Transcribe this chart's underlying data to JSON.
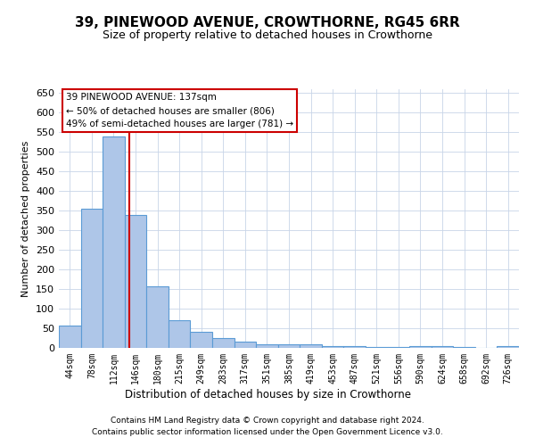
{
  "title": "39, PINEWOOD AVENUE, CROWTHORNE, RG45 6RR",
  "subtitle": "Size of property relative to detached houses in Crowthorne",
  "xlabel": "Distribution of detached houses by size in Crowthorne",
  "ylabel": "Number of detached properties",
  "footnote1": "Contains HM Land Registry data © Crown copyright and database right 2024.",
  "footnote2": "Contains public sector information licensed under the Open Government Licence v3.0.",
  "bin_labels": [
    "44sqm",
    "78sqm",
    "112sqm",
    "146sqm",
    "180sqm",
    "215sqm",
    "249sqm",
    "283sqm",
    "317sqm",
    "351sqm",
    "385sqm",
    "419sqm",
    "453sqm",
    "487sqm",
    "521sqm",
    "556sqm",
    "590sqm",
    "624sqm",
    "658sqm",
    "692sqm",
    "726sqm"
  ],
  "bar_heights": [
    58,
    355,
    540,
    338,
    157,
    70,
    42,
    25,
    17,
    10,
    8,
    10,
    5,
    5,
    3,
    2,
    5,
    5,
    2,
    0,
    5
  ],
  "bar_color": "#aec6e8",
  "bar_edge_color": "#5b9bd5",
  "property_label": "39 PINEWOOD AVENUE: 137sqm",
  "annotation_line1": "← 50% of detached houses are smaller (806)",
  "annotation_line2": "49% of semi-detached houses are larger (781) →",
  "vline_color": "#cc0000",
  "vline_x_index": 2.735,
  "ylim": [
    0,
    660
  ],
  "yticks": [
    0,
    50,
    100,
    150,
    200,
    250,
    300,
    350,
    400,
    450,
    500,
    550,
    600,
    650
  ],
  "bg_color": "#ffffff",
  "grid_color": "#c8d4e8"
}
